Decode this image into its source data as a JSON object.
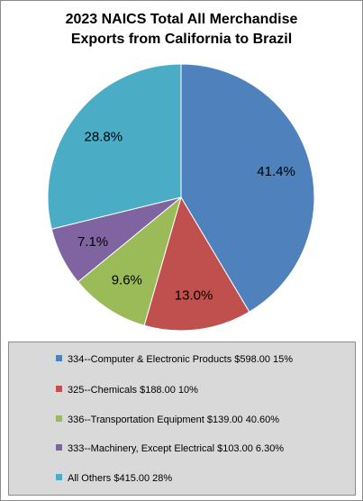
{
  "chart_data": {
    "type": "pie",
    "title_line1": "2023 NAICS Total All Merchandise",
    "title_line2": "Exports from California to Brazil",
    "slices": [
      {
        "label": "334--Computer & Electronic Products $598.00 15%",
        "value": 41.4,
        "pct_label": "41.4%",
        "color": "#4f81bd"
      },
      {
        "label": "325--Chemicals $188.00 10%",
        "value": 13.0,
        "pct_label": "13.0%",
        "color": "#c0504d"
      },
      {
        "label": "336--Transportation Equipment $139.00 40.60%",
        "value": 9.6,
        "pct_label": "9.6%",
        "color": "#9bbb59"
      },
      {
        "label": "333--Machinery, Except Electrical $103.00 6.30%",
        "value": 7.1,
        "pct_label": "7.1%",
        "color": "#8064a2"
      },
      {
        "label": "All Others $415.00 28%",
        "value": 28.8,
        "pct_label": "28.8%",
        "color": "#4bacc6"
      }
    ],
    "legend_position": "bottom"
  }
}
